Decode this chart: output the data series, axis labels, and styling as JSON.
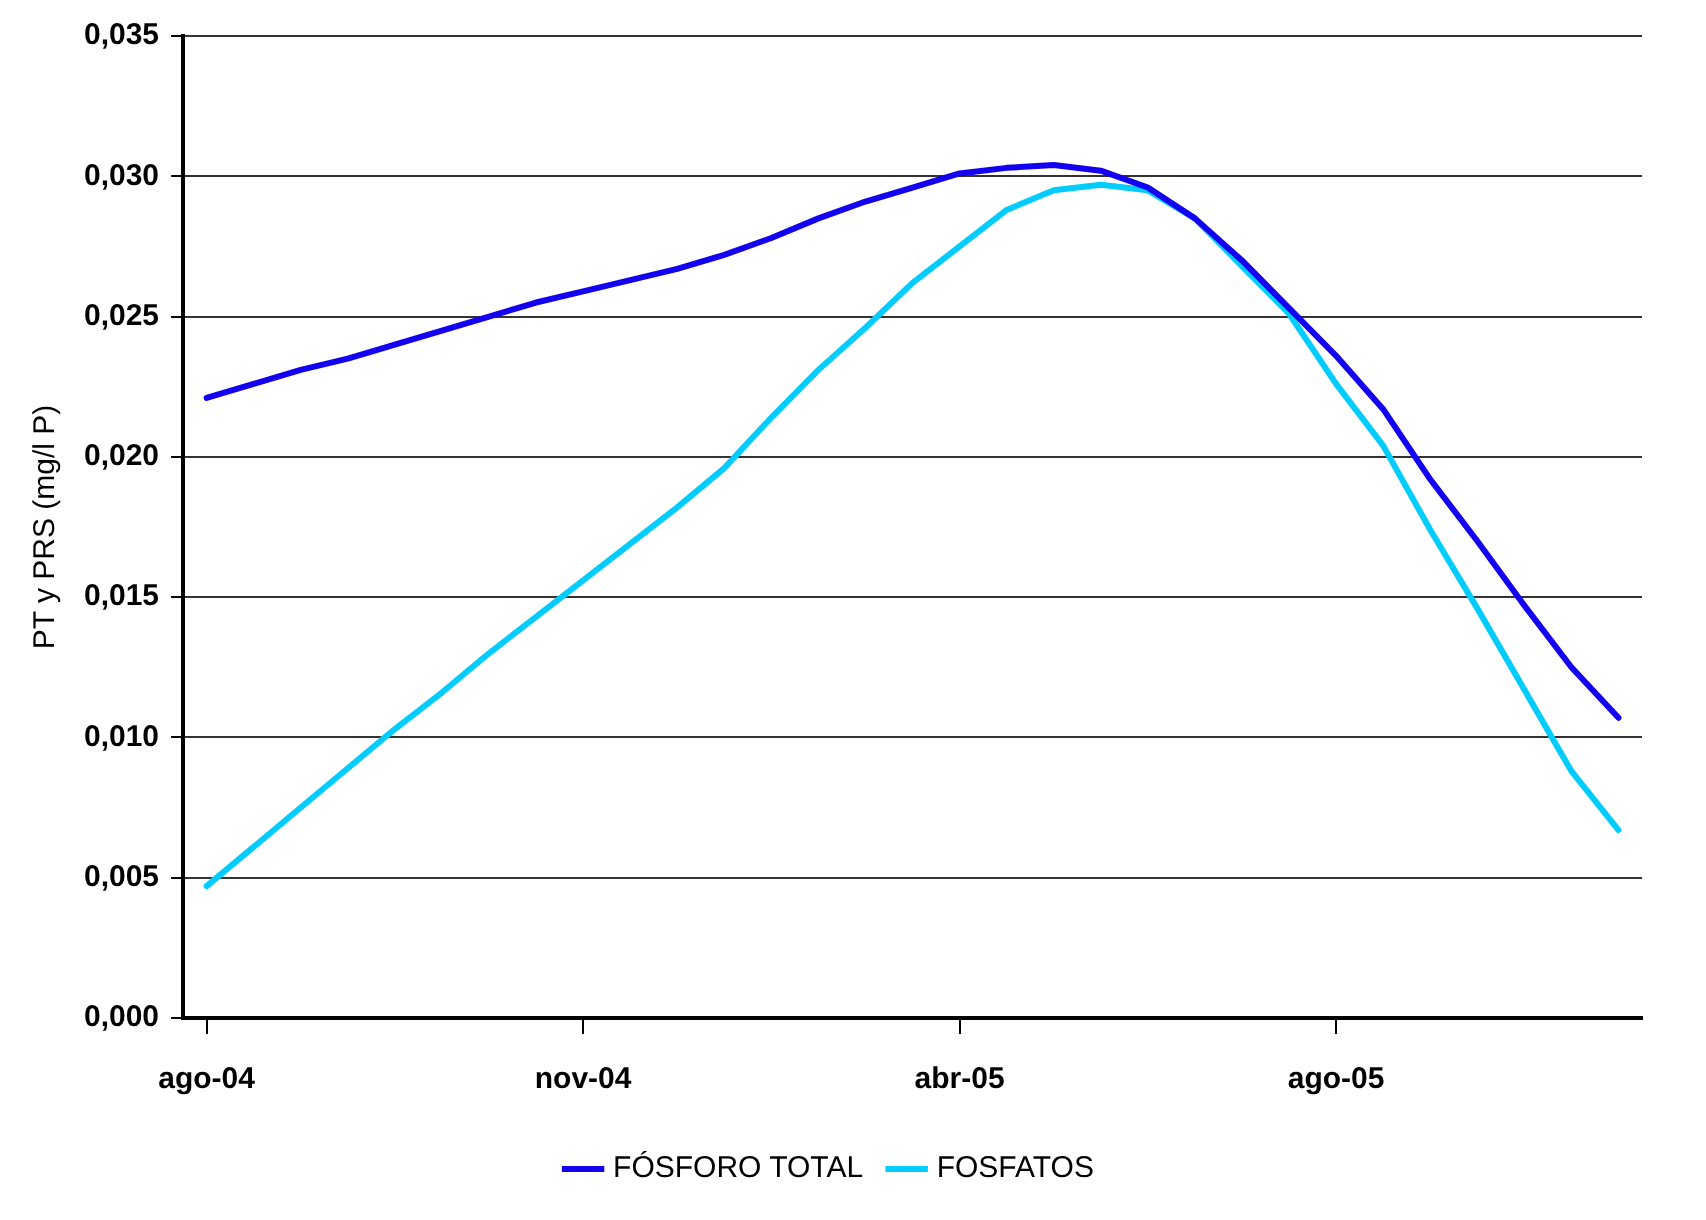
{
  "chart_data": {
    "type": "line",
    "ylabel": "PT y PRS (mg/l P)",
    "categories": [
      "ago-04",
      null,
      null,
      null,
      null,
      null,
      null,
      null,
      "nov-04",
      null,
      null,
      null,
      null,
      null,
      null,
      null,
      "abr-05",
      null,
      null,
      null,
      null,
      null,
      null,
      null,
      "ago-05",
      null,
      null,
      null,
      null,
      null,
      null
    ],
    "ylim": [
      0,
      0.035
    ],
    "yticks": [
      {
        "value": 0,
        "label": "0,000"
      },
      {
        "value": 0.005,
        "label": "0,005"
      },
      {
        "value": 0.01,
        "label": "0,010"
      },
      {
        "value": 0.015,
        "label": "0,015"
      },
      {
        "value": 0.02,
        "label": "0,020"
      },
      {
        "value": 0.025,
        "label": "0,025"
      },
      {
        "value": 0.03,
        "label": "0,030"
      },
      {
        "value": 0.035,
        "label": "0,035"
      }
    ],
    "grid": "y",
    "legend": "bottom",
    "marker": "none",
    "line_style": "solid",
    "series": [
      {
        "name": "FÓSFORO TOTAL",
        "color": "#1400f0",
        "values": [
          0.0221,
          0.0226,
          0.0231,
          0.0235,
          0.024,
          0.0245,
          0.025,
          0.0255,
          0.0259,
          0.0263,
          0.0267,
          0.0272,
          0.0278,
          0.0285,
          0.0291,
          0.0296,
          0.0301,
          0.0303,
          0.0304,
          0.0302,
          0.0296,
          0.0285,
          0.027,
          0.0253,
          0.0236,
          0.0217,
          0.0192,
          0.017,
          0.0147,
          0.0125,
          0.0107
        ]
      },
      {
        "name": "FOSFATOS",
        "color": "#00ccff",
        "values": [
          0.0047,
          0.0061,
          0.0075,
          0.0089,
          0.0103,
          0.0116,
          0.013,
          0.0143,
          0.0156,
          0.0169,
          0.0182,
          0.0196,
          0.0214,
          0.0231,
          0.0246,
          0.0262,
          0.0275,
          0.0288,
          0.0295,
          0.0297,
          0.0295,
          0.0285,
          0.0268,
          0.0251,
          0.0226,
          0.0204,
          0.0174,
          0.0146,
          0.0117,
          0.0088,
          0.0067
        ]
      }
    ]
  }
}
